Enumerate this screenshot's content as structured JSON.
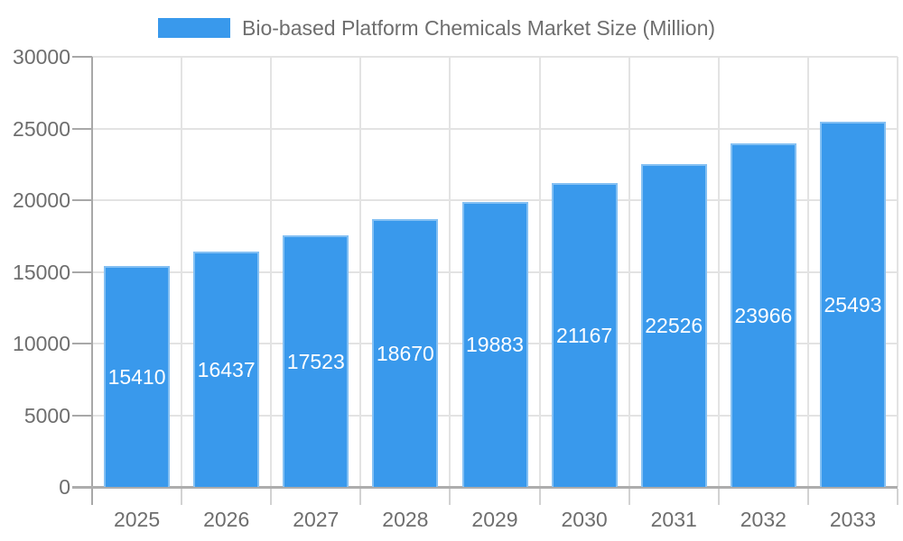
{
  "chart_data": {
    "type": "bar",
    "legend": "Bio-based Platform Chemicals Market Size (Million)",
    "categories": [
      "2025",
      "2026",
      "2027",
      "2028",
      "2029",
      "2030",
      "2031",
      "2032",
      "2033"
    ],
    "values": [
      15410,
      16437,
      17523,
      18670,
      19883,
      21167,
      22526,
      23966,
      25493
    ],
    "series_name": "Bio-based Platform Chemicals Market Size (Million)",
    "xlabel": "",
    "ylabel": "",
    "ylim": [
      0,
      30000
    ],
    "y_ticks": [
      0,
      5000,
      10000,
      15000,
      20000,
      25000,
      30000
    ],
    "grid": "on",
    "legend_position": "top",
    "value_labels": "inside-center",
    "colors": {
      "bar": "#3999ec",
      "bar_edge": "rgba(255,255,255,0.38)",
      "grid": "#e3e3e3",
      "axis": "#a8a8a8",
      "tick_label": "#6e6e6e",
      "value_label": "#ffffff",
      "background": "#ffffff"
    }
  }
}
